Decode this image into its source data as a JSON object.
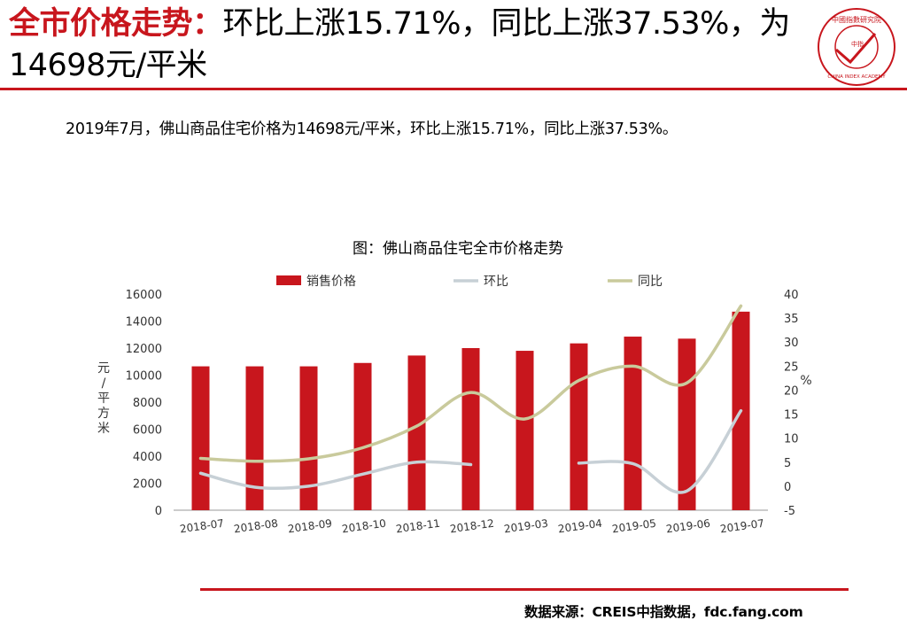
{
  "headline": {
    "highlight": "全市价格走势：",
    "rest": "环比上涨15.71%，同比上涨37.53%，为14698元/平米"
  },
  "summary": "2019年7月，佛山商品住宅价格为14698元/平米，环比上涨15.71%，同比上涨37.53%。",
  "source": "数据来源：CREIS中指数据，fdc.fang.com",
  "logo": {
    "icon": "china-index-academy-seal",
    "top_text": "中國指數研究院",
    "bottom_text": "CHINA INDEX ACADEMY",
    "center_text": "中指"
  },
  "colors": {
    "accent": "#c8161d",
    "bar": "#c8161d",
    "mom": "#c7d0d6",
    "yoy": "#c9ca9c"
  },
  "chart_data": {
    "type": "bar",
    "title": "图：佛山商品住宅全市价格走势",
    "categories": [
      "2018-07",
      "2018-08",
      "2018-09",
      "2018-10",
      "2018-11",
      "2018-12",
      "2019-03",
      "2019-04",
      "2019-05",
      "2019-06",
      "2019-07"
    ],
    "ylabel": "元/平方米",
    "y2label": "%",
    "ylim": [
      0,
      16000
    ],
    "yticks": [
      0,
      2000,
      4000,
      6000,
      8000,
      10000,
      12000,
      14000,
      16000
    ],
    "y2lim": [
      -5,
      40
    ],
    "y2ticks": [
      -5,
      0,
      5,
      10,
      15,
      20,
      25,
      30,
      35,
      40
    ],
    "legend_position": "top",
    "grid": false,
    "series": [
      {
        "name": "销售价格",
        "type": "bar",
        "axis": "left",
        "values": [
          10650,
          10650,
          10650,
          10900,
          11450,
          12000,
          11800,
          12350,
          12850,
          12700,
          14698
        ]
      },
      {
        "name": "环比",
        "type": "line",
        "axis": "right",
        "values": [
          2.7,
          -0.2,
          0,
          2.5,
          5.0,
          4.5,
          null,
          4.8,
          4.7,
          -1.0,
          15.71
        ]
      },
      {
        "name": "同比",
        "type": "line",
        "axis": "right",
        "values": [
          5.8,
          5.2,
          5.7,
          8.0,
          12.5,
          19.5,
          14.0,
          22.0,
          25.0,
          21.5,
          37.53
        ]
      }
    ]
  }
}
